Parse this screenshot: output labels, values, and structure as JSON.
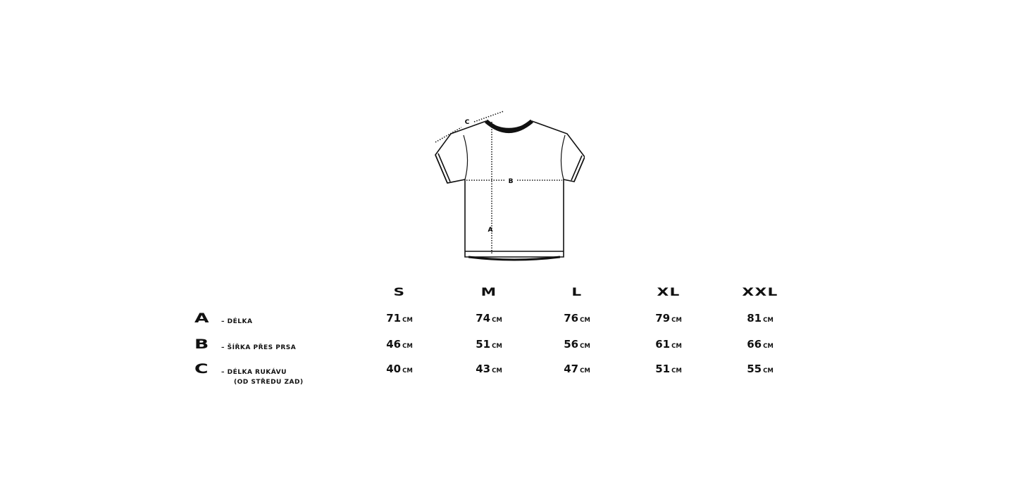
{
  "diagram": {
    "labels": {
      "a": "A",
      "b": "B",
      "c": "C"
    }
  },
  "table": {
    "sizes": [
      "S",
      "M",
      "L",
      "XL",
      "XXL"
    ],
    "unit": "CM",
    "rows": [
      {
        "letter": "A",
        "label": "– DÉLKA",
        "sublabel": "",
        "values": [
          "71",
          "74",
          "76",
          "79",
          "81"
        ]
      },
      {
        "letter": "B",
        "label": "– ŠÍŘKA PŘES PRSA",
        "sublabel": "",
        "values": [
          "46",
          "51",
          "56",
          "61",
          "66"
        ]
      },
      {
        "letter": "C",
        "label": "– DÉLKA RUKÁVU",
        "sublabel": "(OD STŘEDU ZAD)",
        "values": [
          "40",
          "43",
          "47",
          "51",
          "55"
        ]
      }
    ]
  }
}
